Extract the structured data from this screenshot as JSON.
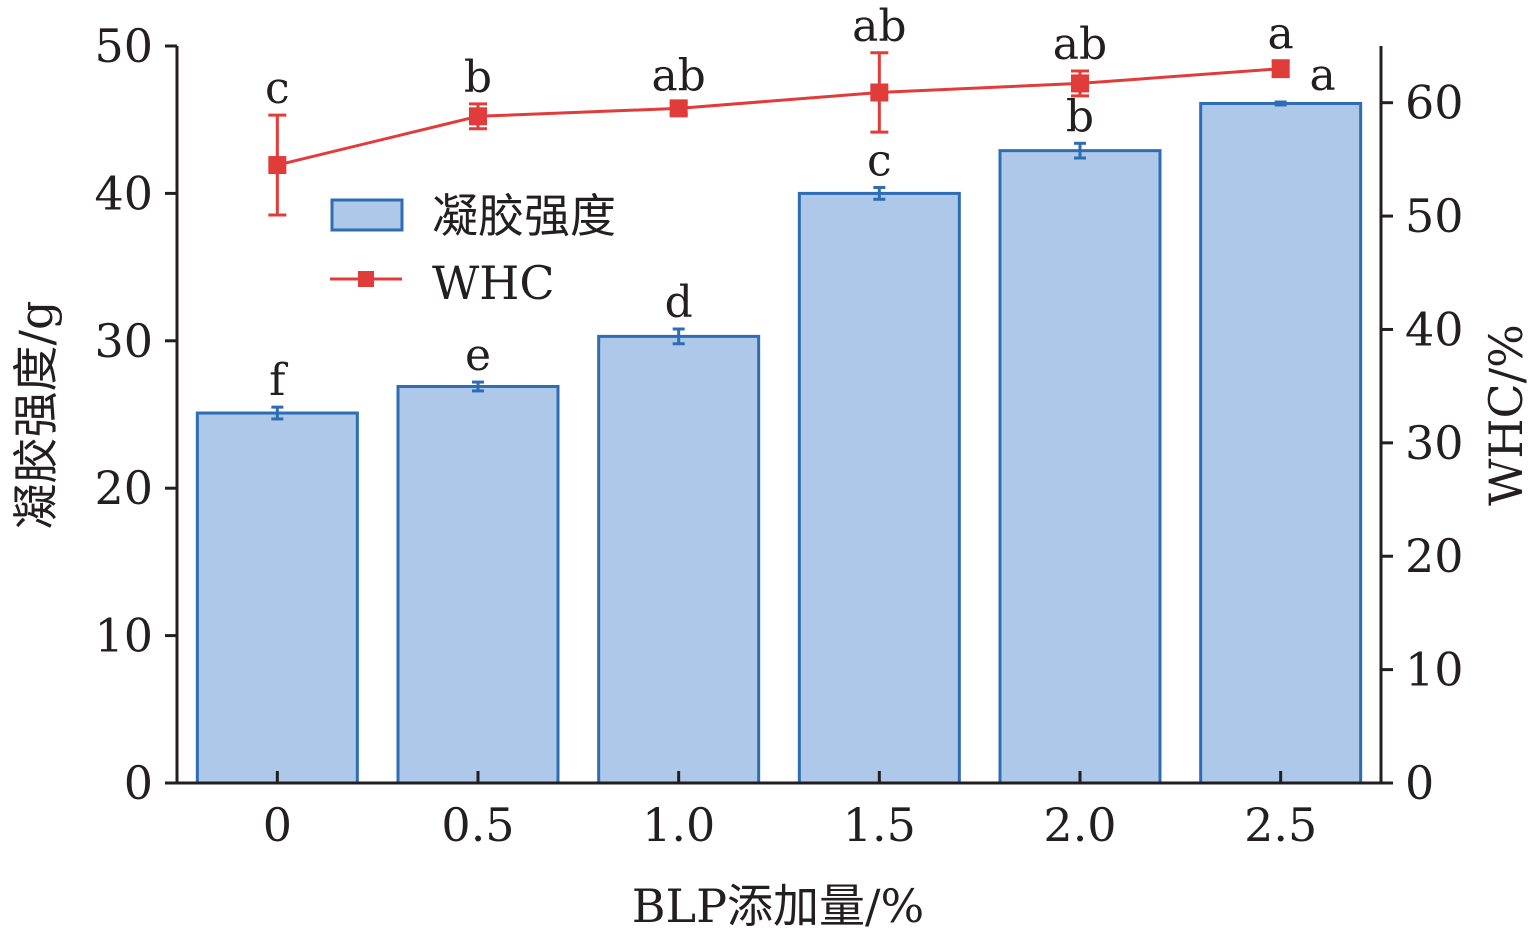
{
  "chart_data": {
    "type": "bar",
    "categories": [
      "0",
      "0.5",
      "1.0",
      "1.5",
      "2.0",
      "2.5"
    ],
    "xlabel": "BLP添加量/%",
    "ylabel": "凝胶强度/g",
    "y2label": "WHC/%",
    "ylim": [
      0,
      50
    ],
    "y2lim": [
      0,
      65
    ],
    "yticks": [
      "0",
      "10",
      "20",
      "30",
      "40",
      "50"
    ],
    "y2ticks": [
      "0",
      "10",
      "20",
      "30",
      "40",
      "50",
      "60"
    ],
    "series": [
      {
        "name": "凝胶强度",
        "type": "bar",
        "axis": "left",
        "color": "#adc8e8",
        "edge_color": "#2e6db4",
        "values": [
          25.1,
          26.9,
          30.3,
          40.0,
          42.9,
          46.1
        ],
        "errors": [
          0.4,
          0.3,
          0.5,
          0.4,
          0.5,
          0.1
        ],
        "labels": [
          "f",
          "e",
          "d",
          "c",
          "b",
          "a"
        ]
      },
      {
        "name": "WHC",
        "type": "line",
        "axis": "right",
        "color": "#e03c3a",
        "marker": "square",
        "values": [
          54.5,
          58.8,
          59.5,
          60.9,
          61.7,
          63.0
        ],
        "errors": [
          4.4,
          1.1,
          0.5,
          3.5,
          1.1,
          0.7
        ],
        "labels": [
          "c",
          "b",
          "ab",
          "ab",
          "ab",
          "a"
        ]
      }
    ],
    "legend": "upper-left",
    "grid": false
  }
}
